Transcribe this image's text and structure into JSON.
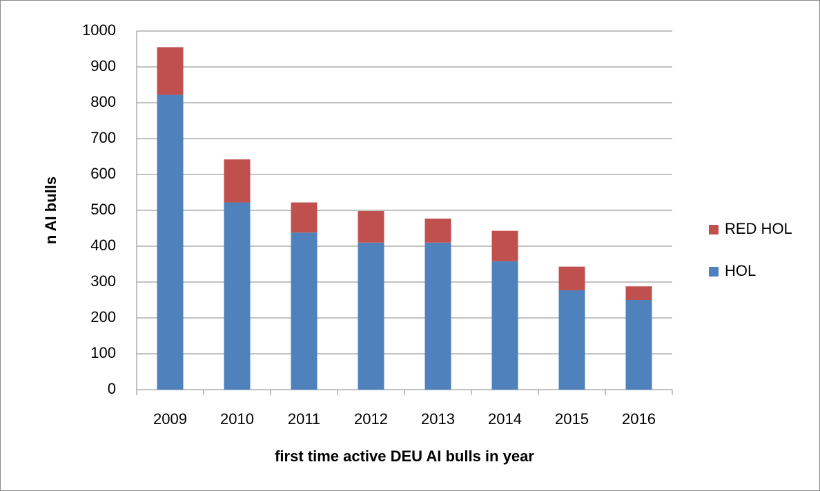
{
  "chart_data": {
    "type": "stacked-bar",
    "x_label": "first time active DEU AI bulls in year",
    "y_label": "n AI bulls",
    "categories": [
      "2009",
      "2010",
      "2011",
      "2012",
      "2013",
      "2014",
      "2015",
      "2016"
    ],
    "series": [
      {
        "name": "HOL",
        "color": "#4f81bd",
        "values": [
          822,
          522,
          438,
          410,
          410,
          358,
          277,
          250
        ]
      },
      {
        "name": "RED HOL",
        "color": "#c0504d",
        "values": [
          133,
          120,
          84,
          88,
          67,
          85,
          66,
          38
        ]
      }
    ],
    "ylim": [
      0,
      1000
    ],
    "yticks": [
      0,
      100,
      200,
      300,
      400,
      500,
      600,
      700,
      800,
      900,
      1000
    ],
    "grid": true,
    "legend": "right"
  }
}
